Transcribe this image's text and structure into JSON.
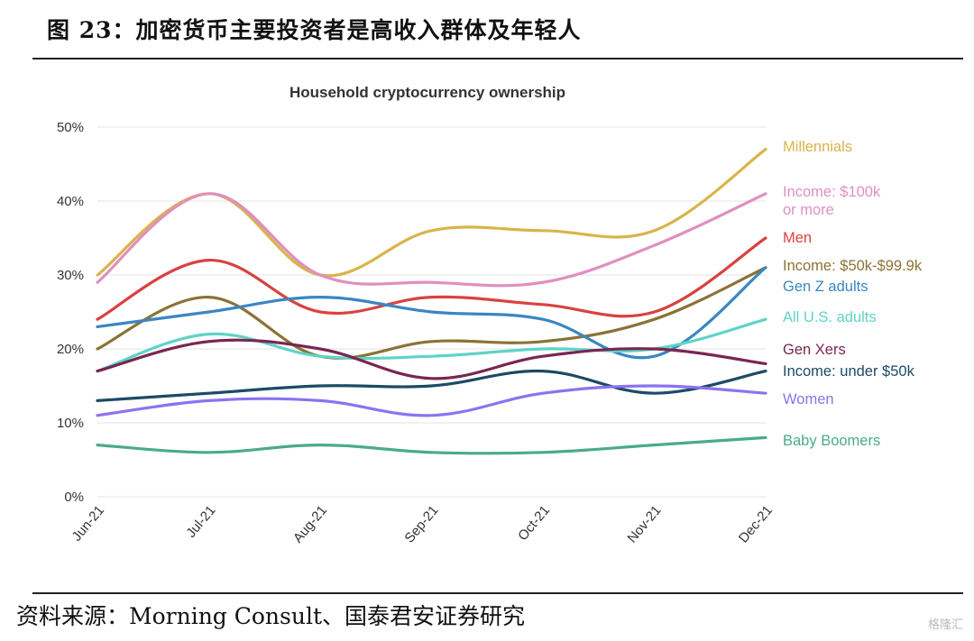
{
  "figure": {
    "title": "图 23：加密货币主要投资者是高收入群体及年轻人",
    "source": "资料来源：Morning Consult、国泰君安证券研究",
    "watermark": "格隆汇"
  },
  "chart_data": {
    "type": "line",
    "title": "Household cryptocurrency ownership",
    "xlabel": "",
    "ylabel": "",
    "x": [
      "Jun-21",
      "Jul-21",
      "Aug-21",
      "Sep-21",
      "Oct-21",
      "Nov-21",
      "Dec-21"
    ],
    "yticks": [
      "0%",
      "10%",
      "20%",
      "30%",
      "40%",
      "50%"
    ],
    "ylim": [
      0,
      50
    ],
    "grid": true,
    "legend_placement": "right (labels at line ends)",
    "series": [
      {
        "name": "Millennials",
        "color": "#d9b44a",
        "values": [
          30,
          41,
          30,
          36,
          36,
          36,
          47
        ]
      },
      {
        "name": "Income: $100k or more",
        "label_lines": [
          "Income: $100k",
          "or more"
        ],
        "color": "#e08fbf",
        "values": [
          29,
          41,
          30,
          29,
          29,
          34,
          41
        ]
      },
      {
        "name": "Men",
        "color": "#d9423f",
        "values": [
          24,
          32,
          25,
          27,
          26,
          25,
          35
        ]
      },
      {
        "name": "Income: $50k-$99.9k",
        "color": "#8a7335",
        "values": [
          20,
          27,
          19,
          21,
          21,
          24,
          31
        ]
      },
      {
        "name": "Gen Z adults",
        "color": "#3a86c2",
        "values": [
          23,
          25,
          27,
          25,
          24,
          19,
          31
        ]
      },
      {
        "name": "All U.S. adults",
        "color": "#5fd3c7",
        "values": [
          17,
          22,
          19,
          19,
          20,
          20,
          24
        ]
      },
      {
        "name": "Gen Xers",
        "color": "#7a2650",
        "values": [
          17,
          21,
          20,
          16,
          19,
          20,
          18
        ]
      },
      {
        "name": "Income: under $50k",
        "color": "#1d4a66",
        "values": [
          13,
          14,
          15,
          15,
          17,
          14,
          17
        ]
      },
      {
        "name": "Women",
        "color": "#8b73ef",
        "values": [
          11,
          13,
          13,
          11,
          14,
          15,
          14
        ]
      },
      {
        "name": "Baby Boomers",
        "color": "#4aab8a",
        "values": [
          7,
          6,
          7,
          6,
          6,
          7,
          8
        ]
      }
    ]
  }
}
